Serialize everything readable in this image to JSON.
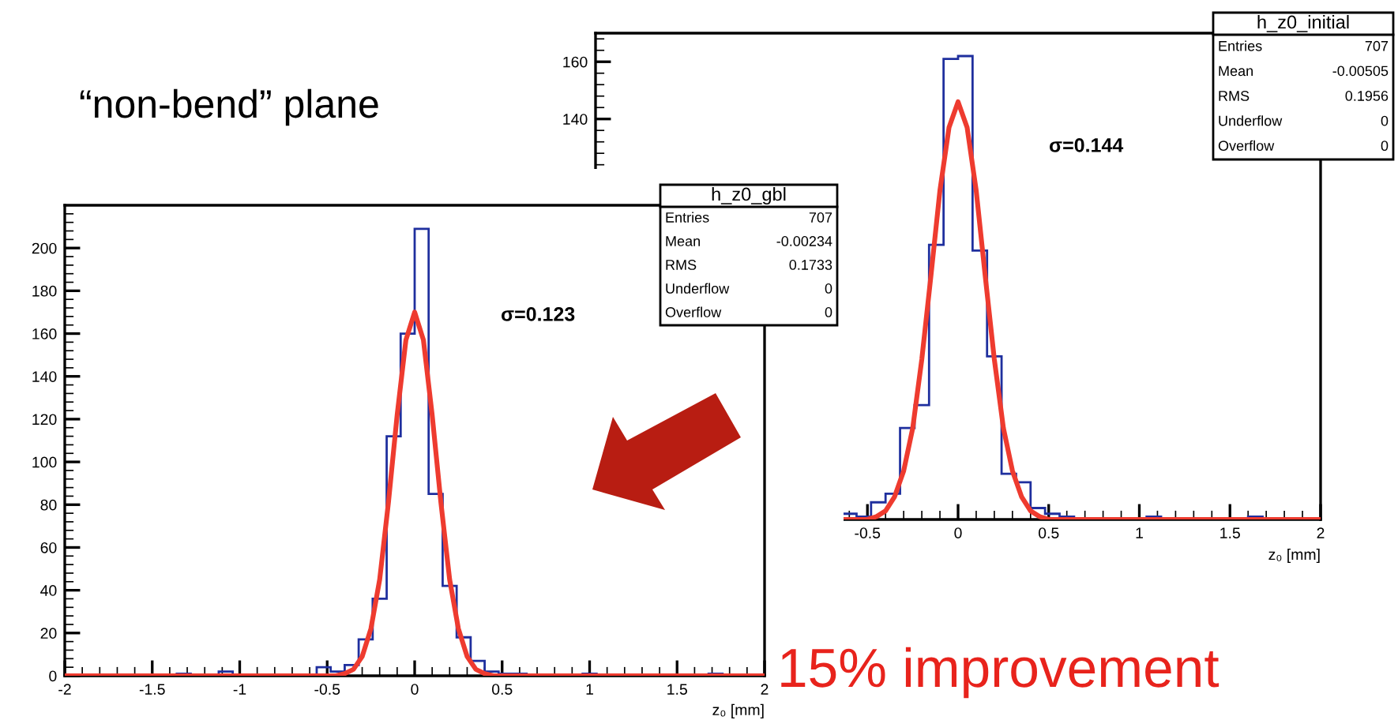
{
  "chart_data": [
    {
      "type": "histogram",
      "xlabel": "z₀ [mm]",
      "annotations": [
        "σ=0.144",
        "h_z0_initial",
        "Entries",
        "707",
        "Mean",
        "-0.00505",
        "RMS",
        "0.1956",
        "Underflow",
        "0",
        "Overflow",
        "0",
        "“non-bend” plane"
      ],
      "bins": [
        -0.64,
        -0.56,
        -0.48,
        -0.4,
        -0.32,
        -0.24,
        -0.16,
        -0.08,
        0,
        0.08,
        0.16,
        0.24,
        0.32,
        0.4,
        0.48,
        0.56,
        0.64,
        0.72,
        0.8,
        0.88,
        0.96,
        1.04,
        1.12,
        1.2,
        1.28,
        1.36,
        1.44,
        1.52,
        1.6,
        1.68,
        1.76,
        1.84,
        1.92,
        2.0
      ],
      "values": [
        2,
        1,
        6,
        9,
        32,
        40,
        96,
        161,
        162,
        94,
        57,
        16,
        13,
        4,
        2,
        1,
        0,
        0,
        0,
        0,
        0,
        1,
        0,
        0,
        0,
        0,
        0,
        0,
        1,
        0,
        0,
        0,
        0
      ],
      "color": "#1f2f9e",
      "series": [
        {
          "type": "line",
          "color": "#ee3b2f",
          "x": [
            -0.64,
            -0.5,
            -0.45,
            -0.4,
            -0.35,
            -0.3,
            -0.25,
            -0.2,
            -0.15,
            -0.1,
            -0.05,
            0,
            0.05,
            0.1,
            0.15,
            0.2,
            0.25,
            0.3,
            0.35,
            0.4,
            0.45,
            0.5,
            2.0
          ],
          "values": [
            0,
            0,
            1,
            3,
            8,
            17,
            32,
            56,
            85,
            115,
            137,
            146,
            137,
            115,
            85,
            56,
            32,
            17,
            8,
            3,
            1,
            0,
            0
          ]
        }
      ],
      "xlim": [
        -2,
        2
      ],
      "ylim": [
        0,
        170
      ],
      "xticks": [
        -0.5,
        0,
        0.5,
        1,
        1.5,
        2
      ],
      "yticks": [
        140,
        160
      ]
    },
    {
      "type": "histogram",
      "xlabel": "z₀ [mm]",
      "annotations": [
        "σ=0.123",
        "h_z0_gbl",
        "Entries",
        "707",
        "Mean",
        "-0.00234",
        "RMS",
        "0.1733",
        "Underflow",
        "0",
        "Overflow",
        "0",
        "15% improvement"
      ],
      "bins": [
        -2.0,
        -1.92,
        -1.84,
        -1.76,
        -1.68,
        -1.6,
        -1.52,
        -1.44,
        -1.36,
        -1.28,
        -1.2,
        -1.12,
        -1.04,
        -0.96,
        -0.88,
        -0.8,
        -0.72,
        -0.64,
        -0.56,
        -0.48,
        -0.4,
        -0.32,
        -0.24,
        -0.16,
        -0.08,
        0,
        0.08,
        0.16,
        0.24,
        0.32,
        0.4,
        0.48,
        0.56,
        0.64,
        0.72,
        0.8,
        0.88,
        0.96,
        1.04,
        1.12,
        1.2,
        1.28,
        1.36,
        1.44,
        1.52,
        1.6,
        1.68,
        1.76,
        1.84,
        1.92,
        2.0
      ],
      "values": [
        0,
        0,
        0,
        0,
        0,
        0,
        0,
        0,
        1,
        0,
        0,
        2,
        0,
        0,
        0,
        0,
        0,
        0,
        4,
        2,
        5,
        17,
        36,
        112,
        160,
        209,
        85,
        42,
        18,
        7,
        2,
        1,
        1,
        0,
        0,
        0,
        0,
        1,
        0,
        0,
        0,
        0,
        0,
        0,
        0,
        0,
        1,
        0,
        0,
        0
      ],
      "color": "#1f2f9e",
      "series": [
        {
          "type": "line",
          "color": "#ee3b2f",
          "x": [
            -2.0,
            -0.45,
            -0.4,
            -0.35,
            -0.3,
            -0.25,
            -0.2,
            -0.15,
            -0.1,
            -0.05,
            0,
            0.05,
            0.1,
            0.15,
            0.2,
            0.25,
            0.3,
            0.35,
            0.4,
            0.45,
            2.0
          ],
          "values": [
            0,
            0,
            1,
            3,
            9,
            22,
            45,
            81,
            122,
            157,
            170,
            157,
            122,
            81,
            45,
            22,
            9,
            3,
            1,
            0,
            0
          ]
        }
      ],
      "xlim": [
        -2,
        2
      ],
      "ylim": [
        0,
        220
      ],
      "xticks": [
        -2,
        -1.5,
        -1,
        -0.5,
        0,
        0.5,
        1,
        1.5,
        2
      ],
      "yticks": [
        0,
        20,
        40,
        60,
        80,
        100,
        120,
        140,
        160,
        180,
        200
      ]
    }
  ]
}
